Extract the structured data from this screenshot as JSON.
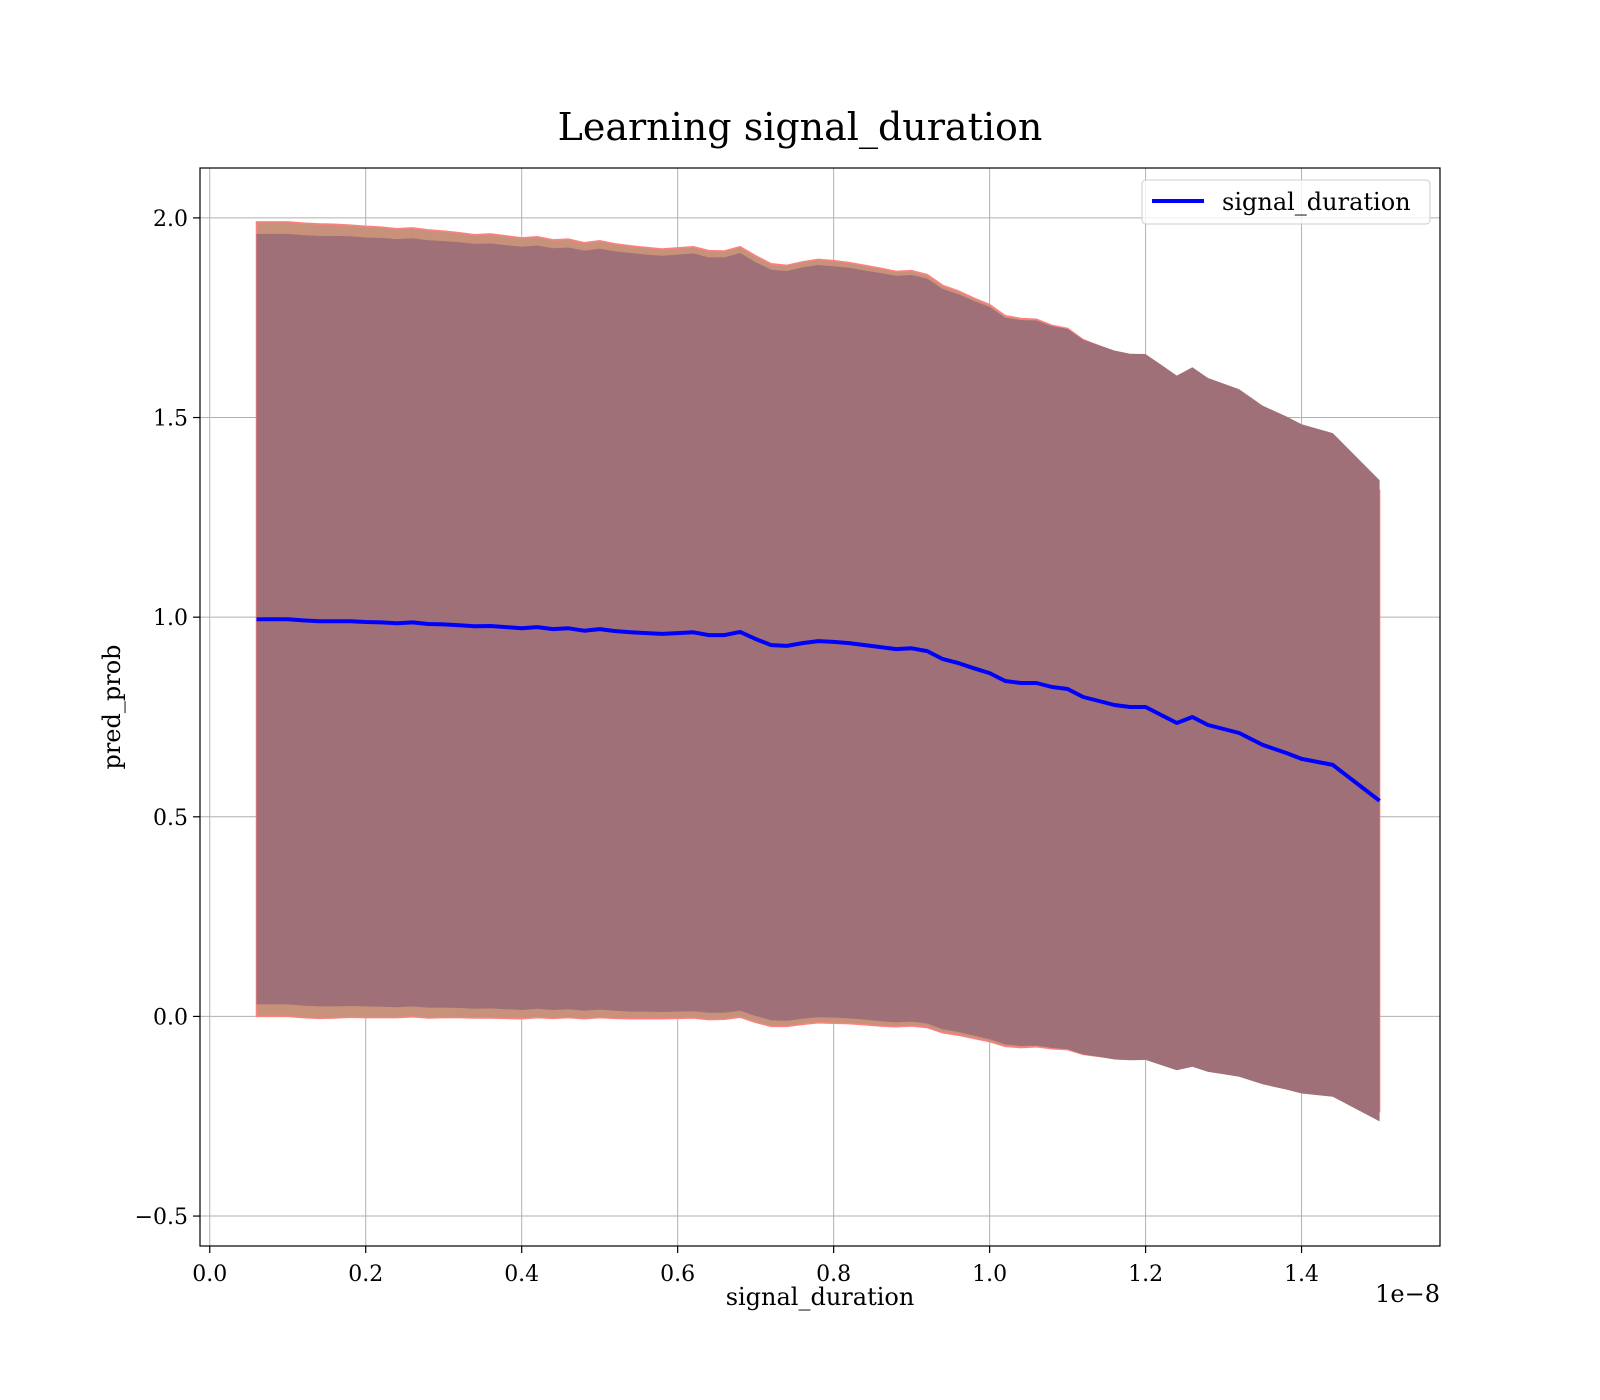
{
  "chart_data": {
    "type": "line",
    "title": "Learning signal_duration",
    "xlabel": "signal_duration",
    "ylabel": "pred_prob",
    "x_offset_label": "1e−8",
    "xlim": [
      -0.0125,
      1.5775
    ],
    "ylim": [
      -0.575,
      2.125
    ],
    "x_ticks": [
      0.0,
      0.2,
      0.4,
      0.6,
      0.8,
      1.0,
      1.2,
      1.4
    ],
    "x_tick_labels": [
      "0.0",
      "0.2",
      "0.4",
      "0.6",
      "0.8",
      "1.0",
      "1.2",
      "1.4"
    ],
    "y_ticks": [
      -0.5,
      0.0,
      0.5,
      1.0,
      1.5,
      2.0
    ],
    "y_tick_labels": [
      "−0.5",
      "0.0",
      "0.5",
      "1.0",
      "1.5",
      "2.0"
    ],
    "grid": true,
    "legend_position": "top-right",
    "colors": {
      "line": "#0000ff",
      "outer_band": "#c8927a",
      "outer_band_edge": "#ff8080",
      "inner_band": "#a07078",
      "grid": "#b0b0b0"
    },
    "series": [
      {
        "name": "signal_duration",
        "x": [
          0.06,
          0.08,
          0.1,
          0.12,
          0.14,
          0.16,
          0.18,
          0.2,
          0.22,
          0.24,
          0.26,
          0.28,
          0.3,
          0.32,
          0.34,
          0.36,
          0.38,
          0.4,
          0.42,
          0.44,
          0.46,
          0.48,
          0.5,
          0.52,
          0.54,
          0.56,
          0.58,
          0.6,
          0.62,
          0.64,
          0.66,
          0.68,
          0.7,
          0.72,
          0.74,
          0.76,
          0.78,
          0.8,
          0.82,
          0.84,
          0.86,
          0.88,
          0.9,
          0.92,
          0.94,
          0.96,
          0.98,
          1.0,
          1.02,
          1.04,
          1.06,
          1.08,
          1.1,
          1.12,
          1.14,
          1.16,
          1.18,
          1.2,
          1.22,
          1.24,
          1.26,
          1.28,
          1.3,
          1.32,
          1.35,
          1.38,
          1.4,
          1.44,
          1.5
        ],
        "y": [
          0.995,
          0.995,
          0.995,
          0.992,
          0.99,
          0.99,
          0.99,
          0.988,
          0.987,
          0.985,
          0.987,
          0.983,
          0.982,
          0.98,
          0.977,
          0.978,
          0.975,
          0.972,
          0.975,
          0.97,
          0.972,
          0.966,
          0.97,
          0.965,
          0.962,
          0.96,
          0.958,
          0.96,
          0.962,
          0.955,
          0.955,
          0.963,
          0.945,
          0.93,
          0.928,
          0.935,
          0.94,
          0.938,
          0.935,
          0.93,
          0.925,
          0.92,
          0.922,
          0.915,
          0.895,
          0.885,
          0.872,
          0.86,
          0.84,
          0.835,
          0.835,
          0.825,
          0.82,
          0.8,
          0.79,
          0.78,
          0.775,
          0.775,
          0.755,
          0.735,
          0.75,
          0.73,
          0.72,
          0.71,
          0.68,
          0.66,
          0.645,
          0.63,
          0.54
        ],
        "outer_upper": [
          1.99,
          1.99,
          1.99,
          1.987,
          1.985,
          1.984,
          1.982,
          1.979,
          1.977,
          1.973,
          1.975,
          1.97,
          1.967,
          1.963,
          1.958,
          1.96,
          1.955,
          1.95,
          1.953,
          1.945,
          1.947,
          1.938,
          1.943,
          1.935,
          1.93,
          1.926,
          1.922,
          1.925,
          1.928,
          1.918,
          1.917,
          1.928,
          1.905,
          1.885,
          1.881,
          1.89,
          1.896,
          1.893,
          1.888,
          1.881,
          1.874,
          1.866,
          1.868,
          1.858,
          1.831,
          1.817,
          1.799,
          1.783,
          1.755,
          1.748,
          1.746,
          1.731,
          1.723,
          1.695,
          1.68,
          1.665,
          1.656,
          1.654,
          1.625,
          1.596,
          1.616,
          1.587,
          1.571,
          1.556,
          1.513,
          1.484,
          1.462,
          1.438,
          1.318
        ],
        "outer_lower": [
          0.0,
          0.0,
          0.0,
          -0.003,
          -0.005,
          -0.004,
          -0.002,
          -0.003,
          -0.003,
          -0.003,
          -0.001,
          -0.004,
          -0.003,
          -0.003,
          -0.004,
          -0.004,
          -0.005,
          -0.006,
          -0.003,
          -0.005,
          -0.003,
          -0.006,
          -0.003,
          -0.005,
          -0.006,
          -0.006,
          -0.006,
          -0.005,
          -0.004,
          -0.008,
          -0.007,
          -0.002,
          -0.015,
          -0.025,
          -0.025,
          -0.02,
          -0.016,
          -0.017,
          -0.018,
          -0.021,
          -0.024,
          -0.026,
          -0.024,
          -0.028,
          -0.041,
          -0.047,
          -0.055,
          -0.063,
          -0.075,
          -0.078,
          -0.076,
          -0.081,
          -0.083,
          -0.095,
          -0.1,
          -0.105,
          -0.106,
          -0.104,
          -0.115,
          -0.126,
          -0.116,
          -0.127,
          -0.131,
          -0.136,
          -0.153,
          -0.164,
          -0.172,
          -0.178,
          -0.238
        ],
        "inner_upper": [
          1.96,
          1.96,
          1.96,
          1.957,
          1.955,
          1.955,
          1.954,
          1.951,
          1.95,
          1.947,
          1.949,
          1.944,
          1.942,
          1.939,
          1.935,
          1.936,
          1.932,
          1.928,
          1.931,
          1.924,
          1.926,
          1.918,
          1.923,
          1.916,
          1.912,
          1.908,
          1.905,
          1.908,
          1.911,
          1.901,
          1.901,
          1.912,
          1.889,
          1.87,
          1.867,
          1.876,
          1.882,
          1.879,
          1.875,
          1.868,
          1.862,
          1.855,
          1.857,
          1.848,
          1.822,
          1.809,
          1.792,
          1.777,
          1.75,
          1.744,
          1.743,
          1.729,
          1.722,
          1.695,
          1.681,
          1.668,
          1.66,
          1.659,
          1.632,
          1.605,
          1.626,
          1.599,
          1.585,
          1.571,
          1.53,
          1.503,
          1.483,
          1.461,
          1.343
        ],
        "inner_lower": [
          0.03,
          0.03,
          0.03,
          0.027,
          0.025,
          0.025,
          0.026,
          0.025,
          0.024,
          0.023,
          0.025,
          0.022,
          0.022,
          0.021,
          0.019,
          0.02,
          0.018,
          0.016,
          0.019,
          0.016,
          0.018,
          0.014,
          0.017,
          0.014,
          0.012,
          0.012,
          0.011,
          0.012,
          0.013,
          0.009,
          0.009,
          0.014,
          0.001,
          -0.01,
          -0.011,
          -0.006,
          -0.002,
          -0.003,
          -0.005,
          -0.008,
          -0.012,
          -0.015,
          -0.013,
          -0.018,
          -0.032,
          -0.039,
          -0.048,
          -0.057,
          -0.07,
          -0.074,
          -0.073,
          -0.079,
          -0.082,
          -0.095,
          -0.101,
          -0.108,
          -0.11,
          -0.109,
          -0.122,
          -0.135,
          -0.126,
          -0.139,
          -0.145,
          -0.151,
          -0.17,
          -0.183,
          -0.193,
          -0.201,
          -0.263
        ]
      }
    ]
  }
}
